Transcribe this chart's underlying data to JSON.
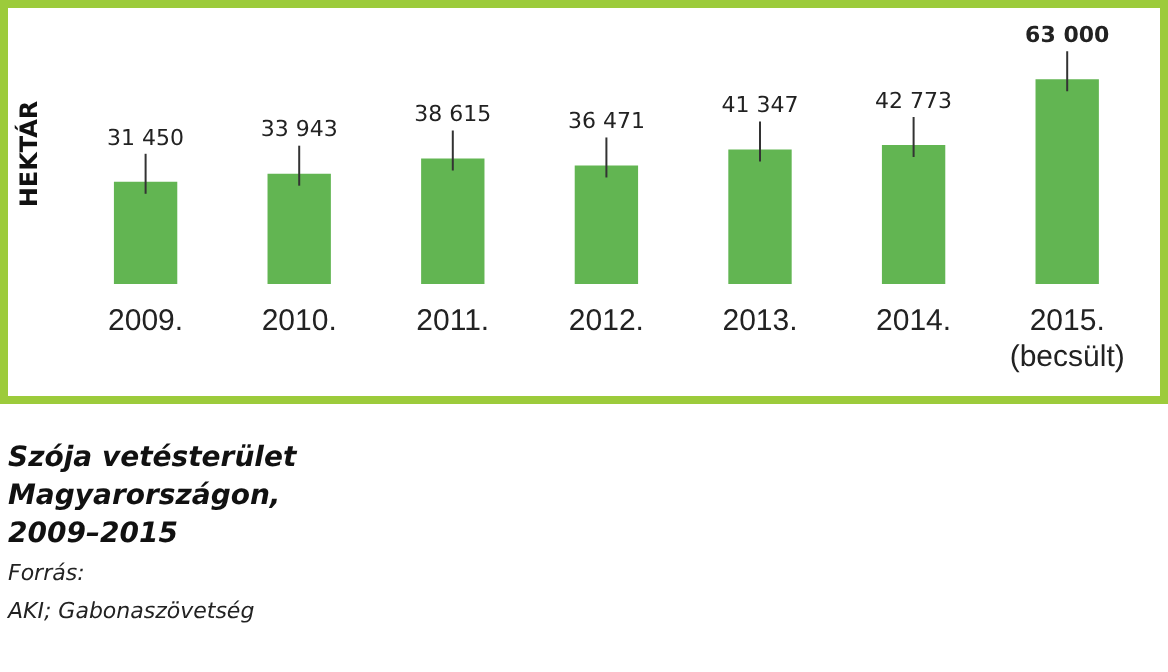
{
  "chart_data": {
    "type": "bar",
    "title": "Szója vetésterület Magyarországon, 2009–2015",
    "ylabel": "HEKTÁR",
    "categories": [
      "2009.",
      "2010.",
      "2011.",
      "2012.",
      "2013.",
      "2014.",
      "2015.\n(becsült)"
    ],
    "values": [
      31450,
      33943,
      38615,
      36471,
      41347,
      42773,
      63000
    ],
    "value_labels": [
      "31 450",
      "33 943",
      "38 615",
      "36 471",
      "41 347",
      "42 773",
      "63 000"
    ],
    "color": "#62b552",
    "annotations": [
      "Forrás:",
      "AKI; Gabonaszövetség"
    ],
    "grid": false,
    "legend": false
  }
}
